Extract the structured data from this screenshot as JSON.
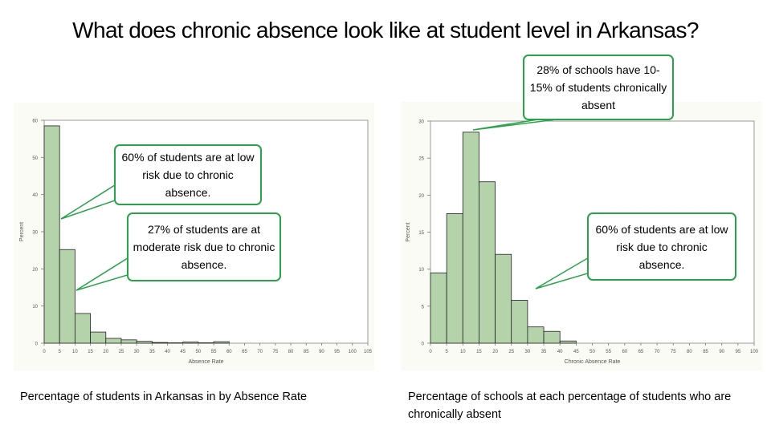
{
  "title": "What does chronic absence look like at student level in Arkansas?",
  "colors": {
    "bar_fill": "#b5d3ab",
    "bar_stroke": "#222222",
    "callout_border": "#2aa24a",
    "panel_bg": "#fbfbf5"
  },
  "captions": {
    "left": "Percentage of students in Arkansas in by  Absence Rate",
    "right": "Percentage of schools at each percentage of students who are chronically absent"
  },
  "callouts": {
    "schools_top": "28% of schools have 10-15% of students chronically absent",
    "left_low": "60% of students are at low risk due to chronic absence.",
    "left_moderate": "27% of students are at moderate risk due to chronic absence.",
    "right_low": "60% of students are at low risk due to chronic absence."
  },
  "chart_data": [
    {
      "type": "bar",
      "xlabel": "Absence Rate",
      "ylabel": "Percent",
      "ylim": [
        0,
        60
      ],
      "yticks": [
        0,
        10,
        20,
        30,
        40,
        50,
        60
      ],
      "xlim": [
        0,
        105
      ],
      "xticks": [
        "0",
        "5",
        "10",
        "15",
        "20",
        "25",
        "30",
        "35",
        "40",
        "45",
        "50",
        "55",
        "60",
        "65",
        "70",
        "75",
        "80",
        "85",
        "90",
        "95",
        "100",
        "105"
      ],
      "bin_width": 5,
      "bins": [
        {
          "x": 0,
          "value": 58.5
        },
        {
          "x": 5,
          "value": 25.2
        },
        {
          "x": 10,
          "value": 8.0
        },
        {
          "x": 15,
          "value": 3.0
        },
        {
          "x": 20,
          "value": 1.3
        },
        {
          "x": 25,
          "value": 0.9
        },
        {
          "x": 30,
          "value": 0.5
        },
        {
          "x": 35,
          "value": 0.2
        },
        {
          "x": 40,
          "value": 0.1
        },
        {
          "x": 45,
          "value": 0.3
        },
        {
          "x": 50,
          "value": 0.1
        },
        {
          "x": 55,
          "value": 0.4
        }
      ],
      "grid": false
    },
    {
      "type": "bar",
      "xlabel": "Chronic Absence Rate",
      "ylabel": "Percent",
      "ylim": [
        0,
        30
      ],
      "yticks": [
        0,
        5,
        10,
        15,
        20,
        25,
        30
      ],
      "xlim": [
        0,
        100
      ],
      "xticks": [
        "0",
        "5",
        "10",
        "15",
        "20",
        "25",
        "30",
        "35",
        "40",
        "45",
        "50",
        "55",
        "60",
        "65",
        "70",
        "75",
        "80",
        "85",
        "90",
        "95",
        "100"
      ],
      "bin_width": 5,
      "bins": [
        {
          "x": 0,
          "value": 9.5
        },
        {
          "x": 5,
          "value": 17.5
        },
        {
          "x": 10,
          "value": 28.5
        },
        {
          "x": 15,
          "value": 21.8
        },
        {
          "x": 20,
          "value": 12.0
        },
        {
          "x": 25,
          "value": 5.8
        },
        {
          "x": 30,
          "value": 2.2
        },
        {
          "x": 35,
          "value": 1.6
        },
        {
          "x": 40,
          "value": 0.3
        }
      ],
      "grid": false
    }
  ]
}
